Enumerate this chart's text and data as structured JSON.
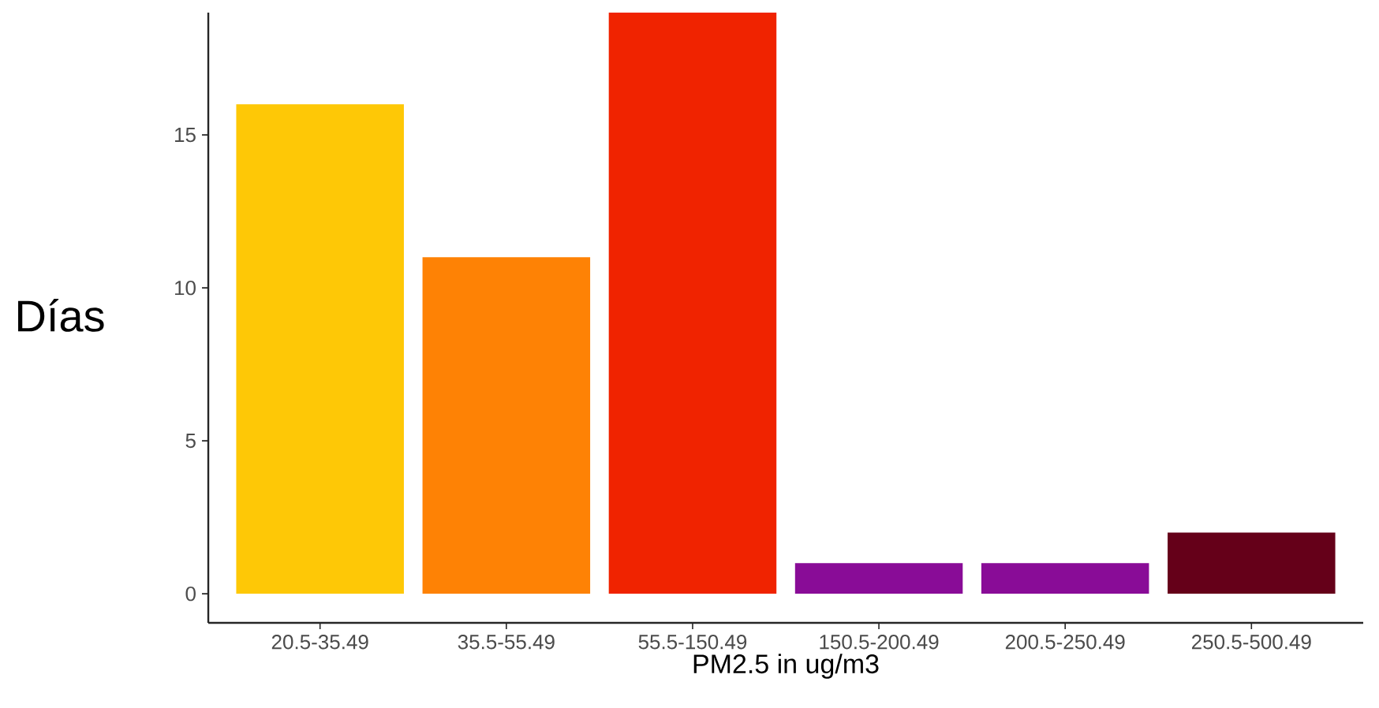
{
  "chart_data": {
    "type": "bar",
    "xlabel": "PM2.5 in ug/m3",
    "ylabel": "Días",
    "categories": [
      "20.5-35.49",
      "35.5-55.49",
      "55.5-150.49",
      "150.5-200.49",
      "200.5-250.49",
      "250.5-500.49"
    ],
    "values": [
      16,
      11,
      19,
      1,
      1,
      2
    ],
    "colors": [
      "#fec806",
      "#fe8205",
      "#f02300",
      "#890c97",
      "#890c97",
      "#650019"
    ],
    "ylim": [
      -0.95,
      19
    ],
    "yticks": [
      0,
      5,
      10,
      15
    ]
  }
}
